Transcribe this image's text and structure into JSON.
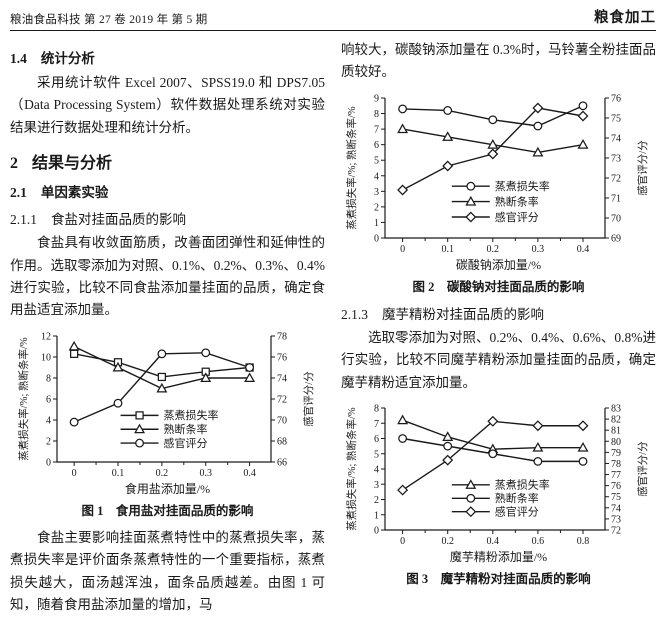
{
  "colors": {
    "ink": "#1a1a1a",
    "paper": "#ffffff"
  },
  "header": {
    "left": "粮油食品科技 第 27 卷 2019 年 第 5 期",
    "right": "粮食加工"
  },
  "left_column": {
    "sec_1_4": {
      "num": "1.4",
      "title": "统计分析"
    },
    "para_stat": "采用统计软件 Excel 2007、SPSS19.0 和 DPS7.05（Data Processing System）软件数据处理系统对实验结果进行数据处理和统计分析。",
    "sec_2": {
      "num": "2",
      "title": "结果与分析"
    },
    "sec_2_1": {
      "num": "2.1",
      "title": "单因素实验"
    },
    "sec_2_1_1": {
      "num": "2.1.1",
      "title": "食盐对挂面品质的影响"
    },
    "para_salt_intro": "食盐具有收敛面筋质，改善面团弹性和延伸性的作用。选取零添加为对照、0.1%、0.2%、0.3%、0.4%进行实验，比较不同食盐添加量挂面的品质，确定食用盐适宜添加量。",
    "para_salt_result": "食盐主要影响挂面蒸煮特性中的蒸煮损失率，蒸煮损失率是评价面条蒸煮特性的一个重要指标，蒸煮损失越大，面汤越浑浊，面条品质越差。由图 1 可知，随着食用盐添加量的增加，马"
  },
  "right_column": {
    "para_soda_tail": "响较大，碳酸钠添加量在 0.3%时，马铃薯全粉挂面品质较好。",
    "sec_2_1_3": {
      "num": "2.1.3",
      "title": "魔芋精粉对挂面品质的影响"
    },
    "para_konjac_intro": "选取零添加为对照、0.2%、0.4%、0.6%、0.8%进行实验，比较不同魔芋精粉添加量挂面的品质，确定魔芋精粉适宜添加量。"
  },
  "chart_data": [
    {
      "type": "line",
      "x_tick_labels": [
        "0",
        "0.1",
        "0.2",
        "0.3",
        "0.4"
      ],
      "xlabel": "食用盐添加量/%",
      "caption": "图 1　食用盐对挂面品质的影响",
      "left_axis": {
        "label": "蒸煮损失率/%; 熟断条率/%",
        "min": 0,
        "max": 12,
        "step": 2
      },
      "right_axis": {
        "label": "感官评分/分",
        "min": 66,
        "max": 78,
        "step": 2
      },
      "grid": false,
      "legend_position": "inside-bottom-center",
      "series": [
        {
          "name": "蒸煮损失率",
          "marker": "square",
          "axis": "left",
          "values": [
            10.3,
            9.5,
            8.1,
            8.6,
            9.0
          ]
        },
        {
          "name": "熟断条率",
          "marker": "triangle",
          "axis": "left",
          "values": [
            11.0,
            9.0,
            7.0,
            8.0,
            8.0
          ]
        },
        {
          "name": "感官评分",
          "marker": "circle",
          "axis": "right",
          "values": [
            69.8,
            71.6,
            76.3,
            76.4,
            75.0
          ]
        }
      ]
    },
    {
      "type": "line",
      "x_tick_labels": [
        "0",
        "0.1",
        "0.2",
        "0.3",
        "0.4"
      ],
      "xlabel": "碳酸钠添加量/%",
      "caption": "图 2　碳酸钠对挂面品质的影响",
      "left_axis": {
        "label": "蒸煮损失率/%; 熟断条率/%",
        "min": 0,
        "max": 9,
        "step": 1
      },
      "right_axis": {
        "label": "感官评分/分",
        "min": 69,
        "max": 76,
        "step": 1
      },
      "grid": false,
      "legend_position": "inside-bottom-center",
      "series": [
        {
          "name": "蒸煮损失率",
          "marker": "circle",
          "axis": "left",
          "values": [
            8.3,
            8.2,
            7.6,
            7.2,
            8.5
          ]
        },
        {
          "name": "熟断条率",
          "marker": "triangle",
          "axis": "left",
          "values": [
            7.0,
            6.5,
            6.0,
            5.5,
            6.0
          ]
        },
        {
          "name": "感官评分",
          "marker": "diamond",
          "axis": "right",
          "values": [
            71.4,
            72.6,
            73.2,
            75.5,
            75.1
          ]
        }
      ]
    },
    {
      "type": "line",
      "x_tick_labels": [
        "0",
        "0.2",
        "0.4",
        "0.6",
        "0.8"
      ],
      "xlabel": "魔芋精粉添加量/%",
      "caption": "图 3　魔芋精粉对挂面品质的影响",
      "left_axis": {
        "label": "蒸煮损失率/%; 熟断条率/%",
        "min": 0,
        "max": 8,
        "step": 1
      },
      "right_axis": {
        "label": "感官评分/分",
        "min": 72,
        "max": 83,
        "step": 1
      },
      "grid": false,
      "legend_position": "inside-bottom-center",
      "series": [
        {
          "name": "蒸煮损失率",
          "marker": "triangle",
          "axis": "left",
          "values": [
            7.2,
            6.1,
            5.3,
            5.4,
            5.4
          ]
        },
        {
          "name": "熟断条率",
          "marker": "circle",
          "axis": "left",
          "values": [
            6.0,
            5.5,
            5.0,
            4.5,
            4.5
          ]
        },
        {
          "name": "感官评分",
          "marker": "diamond",
          "axis": "right",
          "values": [
            75.6,
            78.3,
            81.8,
            81.4,
            81.4
          ]
        }
      ]
    }
  ]
}
